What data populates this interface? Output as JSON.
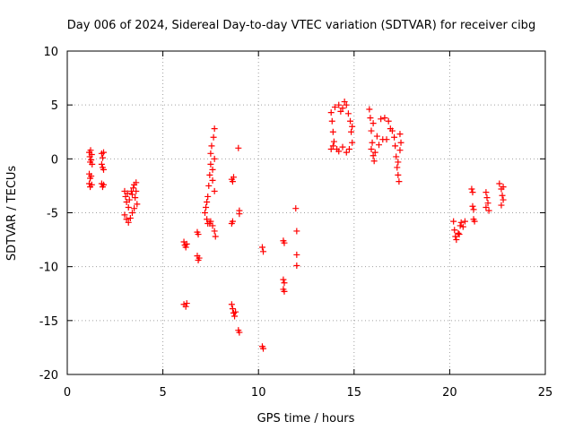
{
  "chart_data": {
    "type": "scatter",
    "title": "Day 006 of 2024, Sidereal Day-to-day VTEC variation (SDTVAR) for receiver cibg",
    "xlabel": "GPS time / hours",
    "ylabel": "SDTVAR / TECUs",
    "xlim": [
      0,
      25
    ],
    "ylim": [
      -20,
      10
    ],
    "xticks": [
      0,
      5,
      10,
      15,
      20,
      25
    ],
    "yticks": [
      -20,
      -15,
      -10,
      -5,
      0,
      5,
      10
    ],
    "grid": true,
    "marker": "plus",
    "color": "#ff0000",
    "series": [
      {
        "name": "SDTVAR",
        "points": [
          [
            1.15,
            0.6
          ],
          [
            1.18,
            0.2
          ],
          [
            1.2,
            -0.3
          ],
          [
            1.22,
            0.8
          ],
          [
            1.25,
            -0.1
          ],
          [
            1.28,
            0.4
          ],
          [
            1.3,
            -0.5
          ],
          [
            1.15,
            -1.4
          ],
          [
            1.2,
            -1.8
          ],
          [
            1.25,
            -1.6
          ],
          [
            1.15,
            -2.3
          ],
          [
            1.2,
            -2.6
          ],
          [
            1.28,
            -2.4
          ],
          [
            1.8,
            0.5
          ],
          [
            1.85,
            0.1
          ],
          [
            1.9,
            0.6
          ],
          [
            1.8,
            -0.5
          ],
          [
            1.85,
            -0.8
          ],
          [
            1.9,
            -1.0
          ],
          [
            1.8,
            -2.3
          ],
          [
            1.85,
            -2.6
          ],
          [
            1.9,
            -2.4
          ],
          [
            3.0,
            -3.0
          ],
          [
            3.05,
            -3.5
          ],
          [
            3.1,
            -4.0
          ],
          [
            3.15,
            -3.2
          ],
          [
            3.2,
            -4.5
          ],
          [
            3.25,
            -3.8
          ],
          [
            3.0,
            -5.2
          ],
          [
            3.1,
            -5.6
          ],
          [
            3.2,
            -5.9
          ],
          [
            3.3,
            -5.5
          ],
          [
            3.4,
            -5.0
          ],
          [
            3.5,
            -4.6
          ],
          [
            3.35,
            -3.0
          ],
          [
            3.45,
            -2.7
          ],
          [
            3.5,
            -2.4
          ],
          [
            3.6,
            -2.2
          ],
          [
            3.55,
            -3.6
          ],
          [
            3.65,
            -4.2
          ],
          [
            3.4,
            -3.3
          ],
          [
            3.6,
            -3.0
          ],
          [
            6.1,
            -7.7
          ],
          [
            6.15,
            -8.0
          ],
          [
            6.2,
            -8.2
          ],
          [
            6.25,
            -7.9
          ],
          [
            6.1,
            -13.5
          ],
          [
            6.2,
            -13.7
          ],
          [
            6.25,
            -13.4
          ],
          [
            6.8,
            -9.0
          ],
          [
            6.85,
            -9.4
          ],
          [
            6.9,
            -9.2
          ],
          [
            6.8,
            -6.8
          ],
          [
            6.85,
            -7.0
          ],
          [
            7.2,
            -5.0
          ],
          [
            7.25,
            -4.5
          ],
          [
            7.3,
            -4.0
          ],
          [
            7.35,
            -3.5
          ],
          [
            7.3,
            -5.6
          ],
          [
            7.35,
            -6.0
          ],
          [
            7.4,
            -2.5
          ],
          [
            7.45,
            -1.5
          ],
          [
            7.5,
            -0.5
          ],
          [
            7.5,
            0.5
          ],
          [
            7.55,
            1.2
          ],
          [
            7.6,
            -1.0
          ],
          [
            7.6,
            -2.0
          ],
          [
            7.65,
            2.0
          ],
          [
            7.7,
            2.8
          ],
          [
            7.7,
            0.0
          ],
          [
            7.7,
            -3.0
          ],
          [
            7.6,
            -6.2
          ],
          [
            7.7,
            -6.7
          ],
          [
            7.75,
            -7.2
          ],
          [
            7.5,
            -5.8
          ],
          [
            7.45,
            -6.0
          ],
          [
            8.6,
            -1.9
          ],
          [
            8.65,
            -2.1
          ],
          [
            8.7,
            -1.7
          ],
          [
            8.6,
            -6.0
          ],
          [
            8.65,
            -5.8
          ],
          [
            8.6,
            -13.5
          ],
          [
            8.65,
            -13.9
          ],
          [
            8.7,
            -14.3
          ],
          [
            8.75,
            -14.6
          ],
          [
            8.8,
            -14.2
          ],
          [
            8.95,
            1.0
          ],
          [
            9.0,
            -4.8
          ],
          [
            9.0,
            -5.1
          ],
          [
            8.95,
            -15.9
          ],
          [
            9.0,
            -16.1
          ],
          [
            10.2,
            -8.2
          ],
          [
            10.25,
            -8.6
          ],
          [
            10.2,
            -17.4
          ],
          [
            10.25,
            -17.6
          ],
          [
            11.3,
            -7.6
          ],
          [
            11.35,
            -7.8
          ],
          [
            11.3,
            -11.2
          ],
          [
            11.35,
            -11.5
          ],
          [
            11.3,
            -12.1
          ],
          [
            11.35,
            -12.3
          ],
          [
            11.95,
            -4.6
          ],
          [
            12.0,
            -6.7
          ],
          [
            12.0,
            -8.9
          ],
          [
            12.0,
            -9.9
          ],
          [
            13.8,
            4.3
          ],
          [
            13.85,
            3.5
          ],
          [
            13.9,
            2.5
          ],
          [
            13.95,
            1.6
          ],
          [
            13.8,
            0.9
          ],
          [
            13.9,
            1.2
          ],
          [
            14.0,
            4.8
          ],
          [
            14.2,
            5.0
          ],
          [
            14.3,
            4.4
          ],
          [
            14.4,
            4.7
          ],
          [
            14.5,
            5.3
          ],
          [
            14.6,
            5.0
          ],
          [
            14.7,
            4.2
          ],
          [
            14.8,
            3.5
          ],
          [
            14.85,
            2.5
          ],
          [
            14.9,
            1.5
          ],
          [
            14.75,
            0.9
          ],
          [
            14.6,
            0.6
          ],
          [
            14.4,
            1.1
          ],
          [
            14.2,
            0.7
          ],
          [
            14.1,
            0.9
          ],
          [
            14.9,
            3.0
          ],
          [
            15.8,
            4.6
          ],
          [
            15.85,
            3.8
          ],
          [
            15.9,
            2.6
          ],
          [
            15.95,
            1.5
          ],
          [
            16.0,
            0.3
          ],
          [
            16.05,
            -0.2
          ],
          [
            16.1,
            0.6
          ],
          [
            15.9,
            0.9
          ],
          [
            16.0,
            3.3
          ],
          [
            16.2,
            2.1
          ],
          [
            16.3,
            1.3
          ],
          [
            16.4,
            3.7
          ],
          [
            16.6,
            3.8
          ],
          [
            16.8,
            3.5
          ],
          [
            16.9,
            2.8
          ],
          [
            16.5,
            1.8
          ],
          [
            16.7,
            1.8
          ],
          [
            17.0,
            2.6
          ],
          [
            17.1,
            2.0
          ],
          [
            17.15,
            1.2
          ],
          [
            17.2,
            0.2
          ],
          [
            17.25,
            -0.8
          ],
          [
            17.3,
            -1.5
          ],
          [
            17.35,
            -2.1
          ],
          [
            17.3,
            -0.3
          ],
          [
            17.4,
            0.8
          ],
          [
            17.4,
            2.3
          ],
          [
            17.45,
            1.5
          ],
          [
            20.2,
            -5.8
          ],
          [
            20.25,
            -6.6
          ],
          [
            20.3,
            -7.2
          ],
          [
            20.35,
            -7.5
          ],
          [
            20.45,
            -6.9
          ],
          [
            20.55,
            -6.2
          ],
          [
            20.6,
            -5.9
          ],
          [
            20.7,
            -6.3
          ],
          [
            20.8,
            -5.8
          ],
          [
            20.5,
            -7.0
          ],
          [
            21.15,
            -2.8
          ],
          [
            21.2,
            -3.1
          ],
          [
            21.2,
            -4.4
          ],
          [
            21.25,
            -4.7
          ],
          [
            21.25,
            -5.6
          ],
          [
            21.3,
            -5.8
          ],
          [
            21.9,
            -3.1
          ],
          [
            21.95,
            -3.6
          ],
          [
            22.0,
            -4.1
          ],
          [
            21.9,
            -4.5
          ],
          [
            22.05,
            -4.8
          ],
          [
            22.6,
            -2.3
          ],
          [
            22.7,
            -2.8
          ],
          [
            22.8,
            -2.6
          ],
          [
            22.75,
            -3.4
          ],
          [
            22.8,
            -3.8
          ],
          [
            22.7,
            -4.3
          ]
        ]
      }
    ]
  }
}
